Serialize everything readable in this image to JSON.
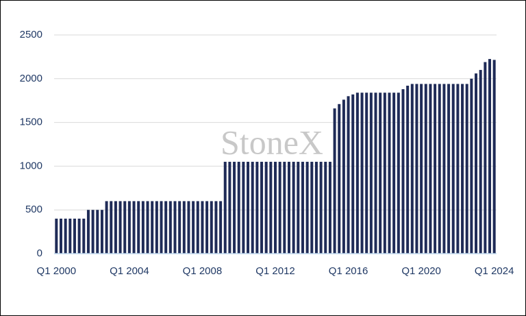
{
  "chart_data": {
    "type": "bar",
    "watermark": "StoneX",
    "categories": [
      "Q1 2000",
      null,
      null,
      null,
      null,
      null,
      null,
      null,
      null,
      null,
      null,
      null,
      null,
      null,
      null,
      null,
      "Q1 2004",
      null,
      null,
      null,
      null,
      null,
      null,
      null,
      null,
      null,
      null,
      null,
      null,
      null,
      null,
      null,
      "Q1 2008",
      null,
      null,
      null,
      null,
      null,
      null,
      null,
      null,
      null,
      null,
      null,
      null,
      null,
      null,
      null,
      "Q1 2012",
      null,
      null,
      null,
      null,
      null,
      null,
      null,
      null,
      null,
      null,
      null,
      null,
      null,
      null,
      null,
      "Q1 2016",
      null,
      null,
      null,
      null,
      null,
      null,
      null,
      null,
      null,
      null,
      null,
      null,
      null,
      null,
      null,
      "Q1 2020",
      null,
      null,
      null,
      null,
      null,
      null,
      null,
      null,
      null,
      null,
      null,
      null,
      null,
      null,
      null,
      "Q1 2024"
    ],
    "values": [
      400,
      400,
      400,
      400,
      400,
      400,
      400,
      500,
      500,
      500,
      500,
      600,
      600,
      600,
      600,
      600,
      600,
      600,
      600,
      600,
      600,
      600,
      600,
      600,
      600,
      600,
      600,
      600,
      600,
      600,
      600,
      600,
      600,
      600,
      600,
      600,
      600,
      1050,
      1050,
      1050,
      1050,
      1050,
      1050,
      1050,
      1050,
      1050,
      1050,
      1050,
      1050,
      1050,
      1050,
      1050,
      1050,
      1050,
      1050,
      1050,
      1050,
      1050,
      1050,
      1050,
      1050,
      1660,
      1710,
      1760,
      1800,
      1820,
      1840,
      1840,
      1840,
      1840,
      1840,
      1840,
      1840,
      1840,
      1840,
      1840,
      1880,
      1920,
      1940,
      1940,
      1940,
      1940,
      1940,
      1940,
      1940,
      1940,
      1940,
      1940,
      1940,
      1940,
      1940,
      2000,
      2060,
      2100,
      2190,
      2225,
      2215
    ],
    "color": "#1f2b57",
    "ylim": [
      0,
      2500
    ],
    "yticks": [
      0,
      500,
      1000,
      1500,
      2000,
      2500
    ],
    "grid": true
  }
}
